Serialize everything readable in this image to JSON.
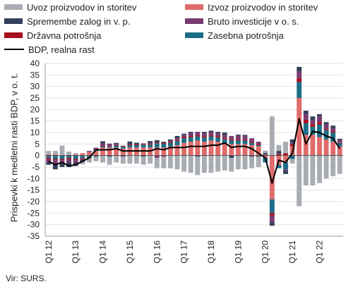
{
  "legend": {
    "items": [
      {
        "key": "uvoz",
        "label": "Uvoz proizvodov in storitev",
        "color": "#a9adb3",
        "type": "bar"
      },
      {
        "key": "izvoz",
        "label": "Izvoz proizvodov in storitev",
        "color": "#e06b6b",
        "type": "bar"
      },
      {
        "key": "zaloge",
        "label": "Spremembe zalog in v. p.",
        "color": "#33415c",
        "type": "bar"
      },
      {
        "key": "bruto",
        "label": "Bruto investicije v o. s.",
        "color": "#7a3b6e",
        "type": "bar"
      },
      {
        "key": "drzavna",
        "label": "Državna potrošnja",
        "color": "#a80f1c",
        "type": "bar"
      },
      {
        "key": "zasebna",
        "label": "Zasebna potrošnja",
        "color": "#1d6e88",
        "type": "bar"
      },
      {
        "key": "bdp",
        "label": "BDP, realna rast",
        "color": "#000000",
        "type": "line"
      }
    ]
  },
  "source": "Vir: SURS.",
  "chart_data": {
    "type": "bar",
    "stacked": true,
    "ylabel": "Prispevki k medletni rasti BDP, v o. t.",
    "ylim": [
      -35,
      40
    ],
    "yticks": [
      -35,
      -30,
      -25,
      -20,
      -15,
      -10,
      -5,
      0,
      5,
      10,
      15,
      20,
      25,
      30,
      35,
      40
    ],
    "xtick_labels": [
      "Q1 12",
      "Q1 13",
      "Q1 14",
      "Q1 15",
      "Q1 16",
      "Q1 17",
      "Q1 18",
      "Q1 19",
      "Q1 20",
      "Q1 21",
      "Q1 22"
    ],
    "quarters_count": 44,
    "grid": "horizontal",
    "series": [
      {
        "key": "izvoz",
        "name": "Izvoz proizvodov in storitev",
        "values": [
          0.5,
          0.5,
          0.3,
          0.2,
          0.5,
          1.0,
          1.5,
          2.0,
          3.5,
          3.5,
          3.5,
          3.0,
          3.5,
          3.5,
          3.5,
          3.5,
          3.5,
          3.5,
          4.0,
          4.5,
          5.5,
          6.0,
          6.5,
          6.0,
          6.5,
          6.0,
          5.5,
          5.0,
          5.0,
          5.0,
          4.5,
          4.0,
          -1.0,
          -19.0,
          -4.0,
          -3.0,
          4.0,
          25.0,
          9.0,
          9.0,
          8.0,
          7.0,
          6.0,
          4.0
        ]
      },
      {
        "key": "zasebna",
        "name": "Zasebna potrošnja",
        "values": [
          -1.0,
          -1.5,
          -1.5,
          -1.0,
          -1.5,
          -1.0,
          -0.5,
          0.5,
          0.5,
          0.5,
          0.8,
          0.8,
          1.0,
          1.0,
          1.2,
          1.2,
          1.8,
          1.6,
          1.6,
          1.8,
          2.0,
          1.8,
          1.8,
          1.8,
          1.8,
          1.8,
          1.5,
          1.5,
          1.6,
          1.5,
          1.0,
          0.5,
          -2.0,
          -6.0,
          -1.5,
          -3.0,
          -1.5,
          7.0,
          5.0,
          3.5,
          5.5,
          4.0,
          4.0,
          1.5
        ]
      },
      {
        "key": "drzavna",
        "name": "Državna potrošnja",
        "values": [
          -0.5,
          -0.5,
          -0.5,
          -0.5,
          -0.5,
          -0.3,
          0.0,
          0.1,
          0.2,
          0.2,
          0.2,
          0.2,
          0.3,
          0.3,
          0.3,
          0.3,
          0.4,
          0.4,
          0.4,
          0.4,
          0.5,
          0.5,
          0.5,
          0.5,
          0.5,
          0.5,
          0.5,
          0.5,
          0.5,
          0.5,
          0.5,
          0.5,
          0.3,
          -1.0,
          0.5,
          1.0,
          1.0,
          1.5,
          1.5,
          1.0,
          1.0,
          0.5,
          0.5,
          0.3
        ]
      },
      {
        "key": "bruto",
        "name": "Bruto investicije v o. s.",
        "values": [
          -1.5,
          -2.0,
          -1.5,
          -1.5,
          -1.0,
          -0.5,
          0.5,
          0.8,
          1.0,
          1.0,
          0.5,
          0.3,
          0.3,
          0.3,
          0.3,
          0.3,
          -1.0,
          -0.5,
          0.5,
          0.8,
          1.0,
          1.5,
          1.5,
          1.5,
          1.5,
          1.5,
          1.5,
          1.5,
          1.5,
          1.5,
          1.5,
          1.0,
          0.3,
          -3.0,
          0.5,
          -0.5,
          0.5,
          3.0,
          2.5,
          2.0,
          2.5,
          2.0,
          1.5,
          1.0
        ]
      },
      {
        "key": "zaloge",
        "name": "Spremembe zalog in v. p.",
        "values": [
          -1.0,
          -2.0,
          -1.5,
          -2.0,
          -1.5,
          -1.0,
          -0.5,
          -0.5,
          1.0,
          -0.5,
          0.5,
          -0.5,
          1.0,
          0.5,
          -0.5,
          1.0,
          1.0,
          0.5,
          0.5,
          1.0,
          0.5,
          0.5,
          -0.5,
          0.5,
          0.5,
          0.5,
          1.0,
          -1.0,
          0.5,
          0.5,
          -0.5,
          -0.5,
          0.5,
          -1.5,
          1.0,
          -1.5,
          1.5,
          2.0,
          1.5,
          1.5,
          1.0,
          1.0,
          1.0,
          0.5
        ]
      },
      {
        "key": "uvoz",
        "name": "Uvoz proizvodov in storitev",
        "values": [
          1.5,
          1.5,
          4.0,
          1.5,
          0.5,
          -1.0,
          -2.0,
          -2.0,
          -3.0,
          -3.5,
          -3.0,
          -3.0,
          -3.5,
          -3.5,
          -3.5,
          -3.5,
          -4.5,
          -5.0,
          -5.5,
          -6.0,
          -7.0,
          -7.5,
          -8.0,
          -7.5,
          -7.5,
          -7.0,
          -6.5,
          -6.0,
          -6.0,
          -6.0,
          -5.0,
          -4.5,
          1.0,
          17.0,
          2.5,
          5.0,
          -2.0,
          -22.0,
          -13.0,
          -13.0,
          -12.0,
          -10.0,
          -9.0,
          -8.0
        ]
      }
    ],
    "line": {
      "key": "bdp",
      "name": "BDP, realna rast",
      "values": [
        -2.5,
        -4.0,
        -3.0,
        -4.5,
        -4.0,
        -2.5,
        -1.0,
        2.5,
        2.5,
        2.5,
        3.0,
        2.0,
        2.0,
        2.0,
        2.0,
        2.0,
        3.0,
        2.5,
        3.5,
        3.5,
        3.5,
        4.0,
        4.0,
        4.0,
        4.5,
        4.5,
        5.5,
        3.5,
        4.0,
        4.0,
        3.0,
        1.0,
        -1.0,
        -12.0,
        -2.0,
        -3.0,
        1.0,
        16.0,
        5.0,
        10.5,
        10.0,
        8.5,
        7.5,
        3.0
      ]
    }
  }
}
